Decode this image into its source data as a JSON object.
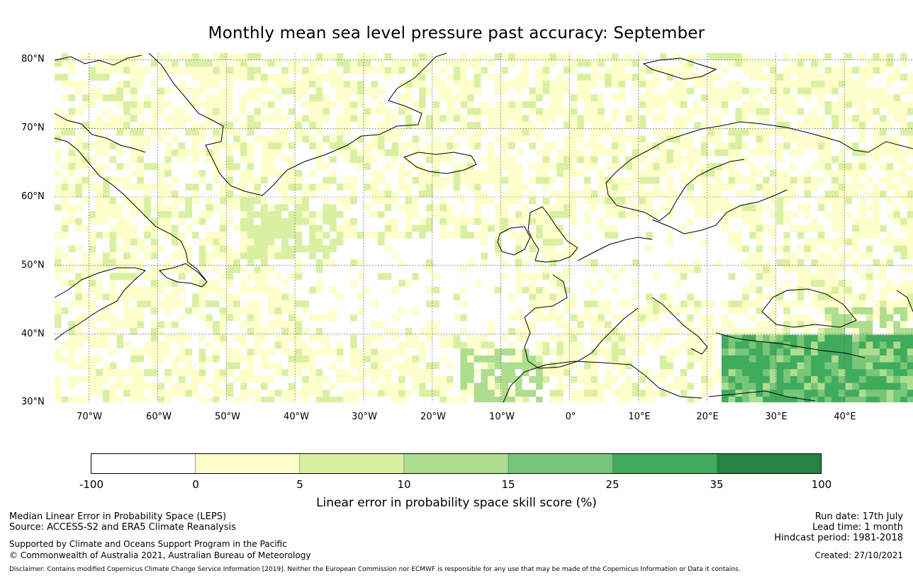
{
  "title": "Monthly mean sea level pressure past accuracy: September",
  "latitude_labels": [
    "80°N",
    "70°N",
    "60°N",
    "50°N",
    "40°N",
    "30°N"
  ],
  "longitude_labels": [
    "70°W",
    "60°W",
    "50°W",
    "40°W",
    "30°W",
    "20°W",
    "10°W",
    "0°",
    "10°E",
    "20°E",
    "30°E",
    "40°E"
  ],
  "colorbar": {
    "ticks": [
      "-100",
      "0",
      "5",
      "10",
      "15",
      "25",
      "35",
      "100"
    ],
    "colors": [
      "#ffffff",
      "#ffffcc",
      "#d9f0a3",
      "#addd8e",
      "#78c679",
      "#41ab5d",
      "#238443"
    ],
    "label": "Linear error in probability space skill score (%)"
  },
  "footer_left": {
    "line1": "Median Linear Error in Probability Space (LEPS)",
    "line2": "Source: ACCESS-S2 and ERA5 Climate Reanalysis",
    "line3": "Supported by Climate and Oceans Support Program in the Pacific",
    "line4": "© Commonwealth of Australia 2021, Australian Bureau of Meteorology"
  },
  "footer_right": {
    "run_date": "Run date: 17th July",
    "lead_time": "Lead time: 1 month",
    "hindcast": "Hindcast period: 1981-2018",
    "created": "Created: 27/10/2021"
  },
  "disclaimer": "Disclaimer: Contains modified Copernicus Climate Change Service Information [2019]. Neither the European Commission nor ECMWF is responsible for any use that may be made of the Copernicus Information or Data it contains.",
  "map_extent": {
    "lon_min": -75,
    "lon_max": 50,
    "lat_min": 30,
    "lat_max": 81
  }
}
